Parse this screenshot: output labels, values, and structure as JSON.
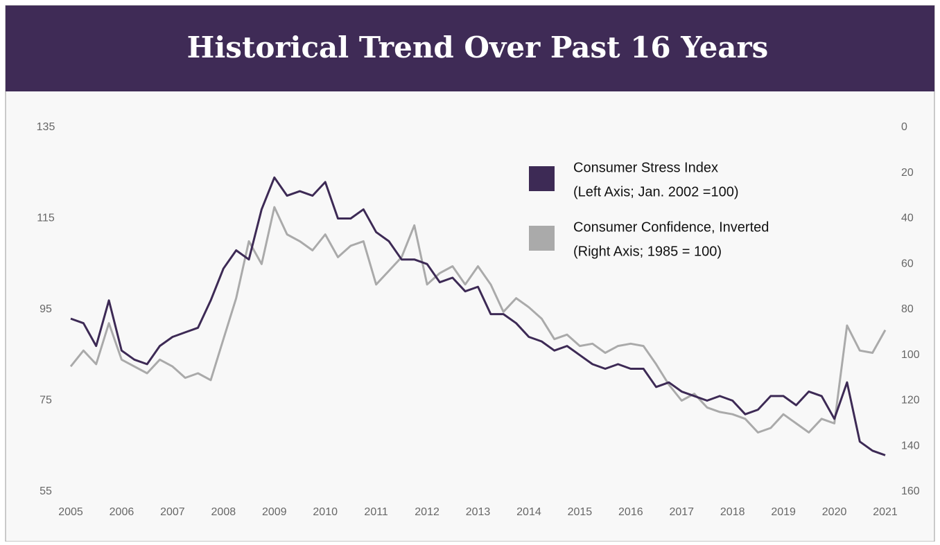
{
  "chart_data": {
    "type": "line",
    "title": "Historical Trend Over Past 16 Years",
    "x": [
      2005,
      2005.25,
      2005.5,
      2005.75,
      2006,
      2006.25,
      2006.5,
      2006.75,
      2007,
      2007.25,
      2007.5,
      2007.75,
      2008,
      2008.25,
      2008.5,
      2008.75,
      2009,
      2009.25,
      2009.5,
      2009.75,
      2010,
      2010.25,
      2010.5,
      2010.75,
      2011,
      2011.25,
      2011.5,
      2011.75,
      2012,
      2012.25,
      2012.5,
      2012.75,
      2013,
      2013.25,
      2013.5,
      2013.75,
      2014,
      2014.25,
      2014.5,
      2014.75,
      2015,
      2015.25,
      2015.5,
      2015.75,
      2016,
      2016.25,
      2016.5,
      2016.75,
      2017,
      2017.25,
      2017.5,
      2017.75,
      2018,
      2018.25,
      2018.5,
      2018.75,
      2019,
      2019.25,
      2019.5,
      2019.75,
      2020,
      2020.25,
      2020.5,
      2020.75,
      2021
    ],
    "series": [
      {
        "name": "Consumer Stress Index",
        "note": "(Left Axis; Jan. 2002 =100)",
        "color": "#3d2a55",
        "axis": "y",
        "values": [
          93,
          92,
          87,
          97,
          86,
          84,
          83,
          87,
          89,
          90,
          91,
          97,
          104,
          108,
          106,
          117,
          124,
          120,
          121,
          120,
          123,
          115,
          115,
          117,
          112,
          110,
          106,
          106,
          105,
          101,
          102,
          99,
          100,
          94,
          94,
          92,
          89,
          88,
          86,
          87,
          85,
          83,
          82,
          83,
          82,
          82,
          78,
          79,
          77,
          76,
          75,
          76,
          75,
          72,
          73,
          76,
          76,
          74,
          77,
          76,
          71,
          79,
          66,
          64,
          63
        ]
      },
      {
        "name": "Consumer Confidence, Inverted",
        "note": "(Right Axis; 1985 = 100)",
        "color": "#aaaaaa",
        "axis": "y2",
        "values": [
          105,
          98,
          104,
          86,
          102,
          105,
          108,
          102,
          105,
          110,
          108,
          111,
          93,
          75,
          50,
          60,
          35,
          47,
          50,
          54,
          47,
          57,
          52,
          50,
          69,
          63,
          57,
          43,
          69,
          64,
          61,
          69,
          61,
          69,
          81,
          75,
          79,
          84,
          93,
          91,
          96,
          95,
          99,
          96,
          95,
          96,
          104,
          113,
          120,
          117,
          123,
          125,
          126,
          128,
          134,
          132,
          126,
          130,
          134,
          128,
          130,
          87,
          98,
          99,
          89
        ]
      }
    ],
    "xlim": [
      2005,
      2021
    ],
    "xticks": [
      2005,
      2006,
      2007,
      2008,
      2009,
      2010,
      2011,
      2012,
      2013,
      2014,
      2015,
      2016,
      2017,
      2018,
      2019,
      2020,
      2021
    ],
    "ylim": [
      55,
      135
    ],
    "yticks": [
      55,
      75,
      95,
      115,
      135
    ],
    "y2lim": [
      160,
      0
    ],
    "y2ticks": [
      0,
      20,
      40,
      60,
      80,
      100,
      120,
      140,
      160
    ]
  }
}
